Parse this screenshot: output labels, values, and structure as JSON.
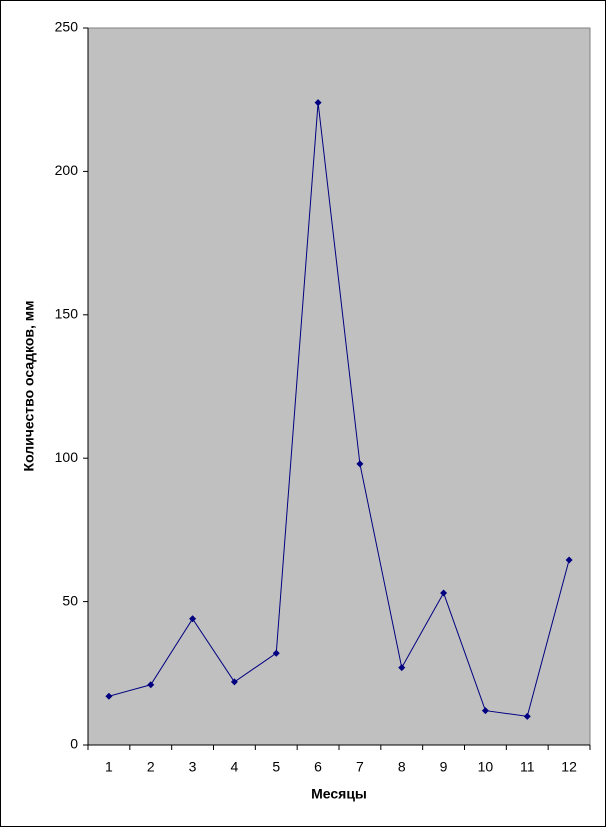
{
  "chart_data": {
    "type": "line",
    "x_label": "Месяцы",
    "y_label": "Количество осадков, мм",
    "categories": [
      "1",
      "2",
      "3",
      "4",
      "5",
      "6",
      "7",
      "8",
      "9",
      "10",
      "11",
      "12"
    ],
    "series": [
      {
        "color": "#000080",
        "values": [
          17,
          21,
          44,
          22,
          32,
          224,
          98,
          27,
          53,
          12,
          10,
          64.5
        ]
      }
    ],
    "ylim": [
      0,
      250
    ],
    "yticks": [
      0,
      50,
      100,
      150,
      200,
      250
    ],
    "plot_background": "#c0c0c0",
    "grid": false
  }
}
